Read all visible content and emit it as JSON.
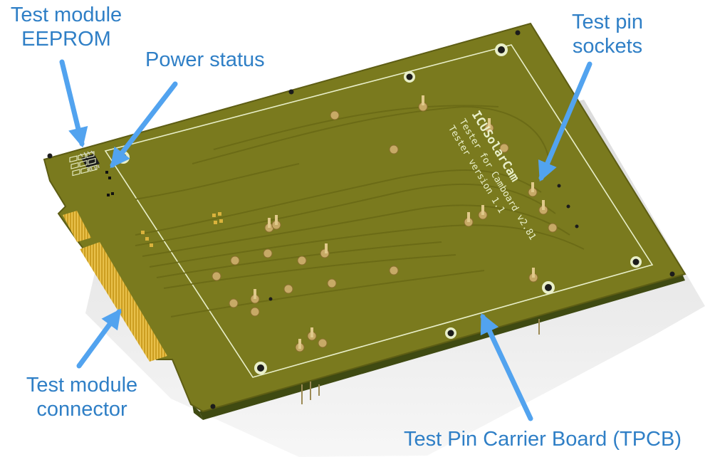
{
  "labels": {
    "eeprom_line1": "Test module",
    "eeprom_line2": "EEPROM",
    "power_status": "Power status",
    "pin_sockets_line1": "Test pin",
    "pin_sockets_line2": "sockets",
    "connector_line1": "Test module",
    "connector_line2": "connector",
    "tpcb": "Test Pin Carrier Board (TPCB)"
  },
  "silkscreen": {
    "line1": "ICUSolarCam",
    "line2": "Tester for Camboard v2.81",
    "line3": "Tester version 1.1"
  },
  "colors": {
    "pcb": "#7a7a1e",
    "pcb_dark": "#55550f",
    "edge_fingers": "#d4a521",
    "callout": "#2f7fc6",
    "arrow": "#52a3ef"
  }
}
